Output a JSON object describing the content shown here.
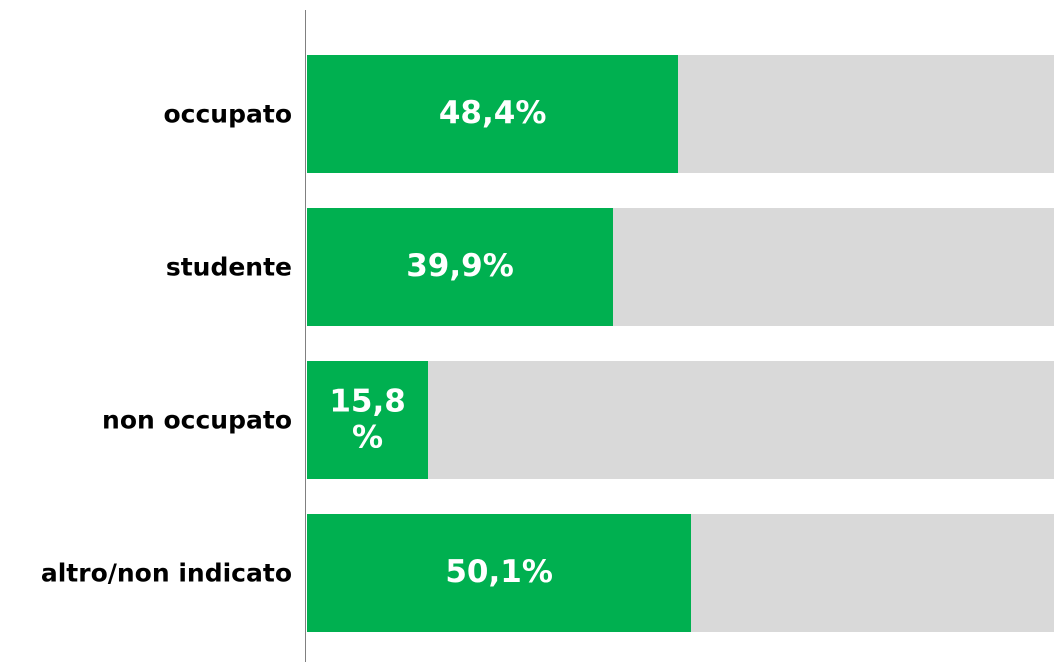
{
  "chart_data": {
    "type": "bar",
    "orientation": "horizontal",
    "categories": [
      "occupato",
      "studente",
      "non occupato",
      "altro/non indicato"
    ],
    "values": [
      48.4,
      39.9,
      15.8,
      50.1
    ],
    "value_labels": [
      "48,4%",
      "39,9%",
      "15,8%",
      "50,1%"
    ],
    "color": "#00b050",
    "track_color": "#d9d9d9",
    "xlim": [
      0,
      100
    ]
  }
}
